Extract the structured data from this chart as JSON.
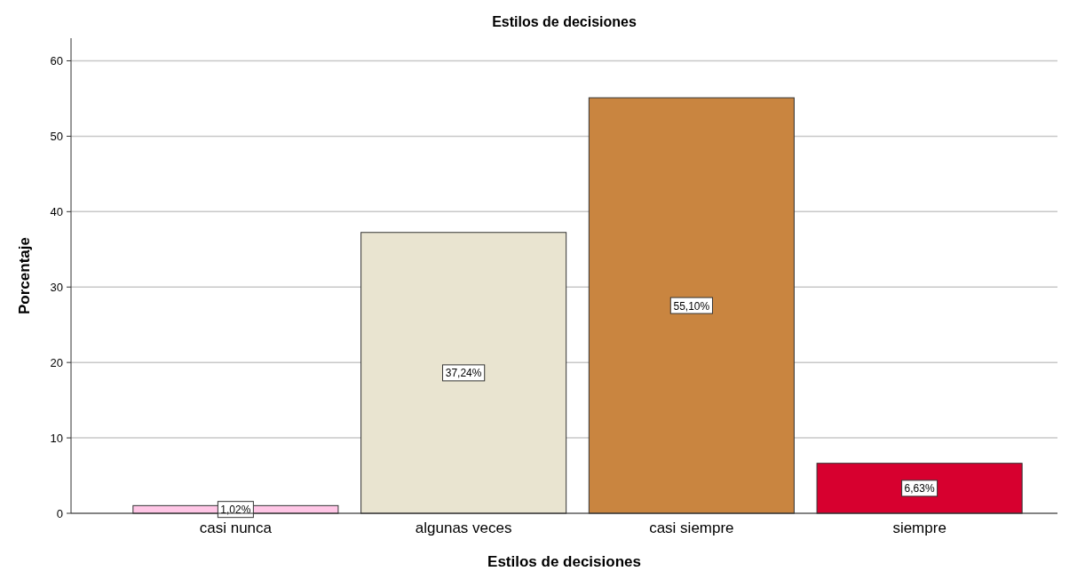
{
  "chart_data": {
    "type": "bar",
    "title": "Estilos de decisiones",
    "xlabel": "Estilos de decisiones",
    "ylabel": "Porcentaje",
    "categories": [
      "casi nunca",
      "algunas veces",
      "casi siempre",
      "siempre"
    ],
    "values": [
      1.02,
      37.24,
      55.1,
      6.63
    ],
    "colors": [
      "#ffc6e6",
      "#e9e4d0",
      "#c98540",
      "#d7002f"
    ],
    "value_labels": [
      "1,02%",
      "37,24%",
      "55,10%",
      "6,63%"
    ],
    "ylim": [
      0,
      63
    ],
    "yticks": [
      0,
      10,
      20,
      30,
      40,
      50,
      60
    ],
    "grid": "y"
  }
}
